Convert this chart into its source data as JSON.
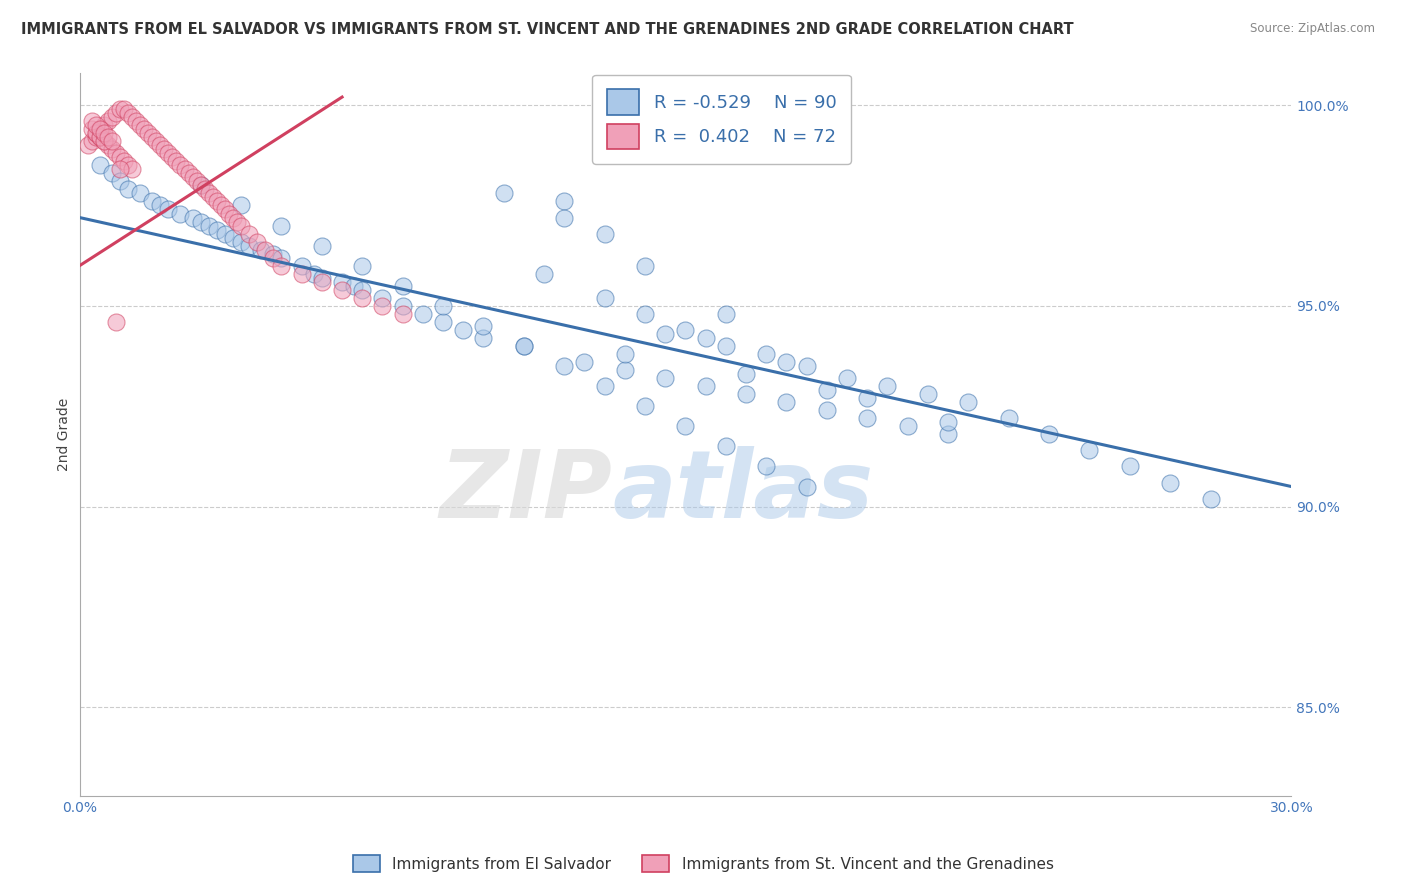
{
  "title": "IMMIGRANTS FROM EL SALVADOR VS IMMIGRANTS FROM ST. VINCENT AND THE GRENADINES 2ND GRADE CORRELATION CHART",
  "source": "Source: ZipAtlas.com",
  "ylabel": "2nd Grade",
  "legend_label_blue": "Immigrants from El Salvador",
  "legend_label_pink": "Immigrants from St. Vincent and the Grenadines",
  "R_blue": -0.529,
  "N_blue": 90,
  "R_pink": 0.402,
  "N_pink": 72,
  "xmin": 0.0,
  "xmax": 0.3,
  "ymin": 0.828,
  "ymax": 1.008,
  "yticks": [
    0.85,
    0.9,
    0.95,
    1.0
  ],
  "ytick_labels": [
    "85.0%",
    "90.0%",
    "95.0%",
    "100.0%"
  ],
  "xticks": [
    0.0,
    0.3
  ],
  "xtick_labels": [
    "0.0%",
    "30.0%"
  ],
  "color_blue": "#aac8e8",
  "color_pink": "#f0a0b8",
  "line_color_blue": "#3a6faa",
  "line_color_pink": "#d04060",
  "background_color": "#ffffff",
  "grid_color": "#cccccc",
  "watermark_zip": "ZIP",
  "watermark_atlas": "atlas",
  "blue_line_x0": 0.0,
  "blue_line_y0": 0.972,
  "blue_line_x1": 0.3,
  "blue_line_y1": 0.905,
  "pink_line_x0": 0.0,
  "pink_line_y0": 0.96,
  "pink_line_x1": 0.065,
  "pink_line_y1": 1.002,
  "blue_x": [
    0.005,
    0.008,
    0.01,
    0.012,
    0.015,
    0.018,
    0.02,
    0.022,
    0.025,
    0.028,
    0.03,
    0.032,
    0.034,
    0.036,
    0.038,
    0.04,
    0.042,
    0.045,
    0.048,
    0.05,
    0.055,
    0.058,
    0.06,
    0.065,
    0.068,
    0.07,
    0.075,
    0.08,
    0.085,
    0.09,
    0.095,
    0.1,
    0.105,
    0.11,
    0.115,
    0.12,
    0.125,
    0.13,
    0.135,
    0.14,
    0.145,
    0.15,
    0.155,
    0.16,
    0.165,
    0.17,
    0.175,
    0.18,
    0.185,
    0.19,
    0.195,
    0.2,
    0.205,
    0.21,
    0.215,
    0.22,
    0.23,
    0.24,
    0.25,
    0.26,
    0.27,
    0.28,
    0.03,
    0.04,
    0.05,
    0.06,
    0.07,
    0.08,
    0.09,
    0.1,
    0.11,
    0.12,
    0.13,
    0.14,
    0.15,
    0.16,
    0.17,
    0.18,
    0.14,
    0.16,
    0.12,
    0.13,
    0.175,
    0.155,
    0.135,
    0.145,
    0.165,
    0.185,
    0.195,
    0.215
  ],
  "blue_y": [
    0.985,
    0.983,
    0.981,
    0.979,
    0.978,
    0.976,
    0.975,
    0.974,
    0.973,
    0.972,
    0.971,
    0.97,
    0.969,
    0.968,
    0.967,
    0.966,
    0.965,
    0.964,
    0.963,
    0.962,
    0.96,
    0.958,
    0.957,
    0.956,
    0.955,
    0.954,
    0.952,
    0.95,
    0.948,
    0.946,
    0.944,
    0.942,
    0.978,
    0.94,
    0.958,
    0.976,
    0.936,
    0.952,
    0.934,
    0.948,
    0.932,
    0.944,
    0.93,
    0.94,
    0.928,
    0.938,
    0.926,
    0.935,
    0.924,
    0.932,
    0.922,
    0.93,
    0.92,
    0.928,
    0.918,
    0.926,
    0.922,
    0.918,
    0.914,
    0.91,
    0.906,
    0.902,
    0.98,
    0.975,
    0.97,
    0.965,
    0.96,
    0.955,
    0.95,
    0.945,
    0.94,
    0.935,
    0.93,
    0.925,
    0.92,
    0.915,
    0.91,
    0.905,
    0.96,
    0.948,
    0.972,
    0.968,
    0.936,
    0.942,
    0.938,
    0.943,
    0.933,
    0.929,
    0.927,
    0.921
  ],
  "pink_x": [
    0.002,
    0.003,
    0.004,
    0.005,
    0.006,
    0.007,
    0.008,
    0.009,
    0.01,
    0.011,
    0.012,
    0.013,
    0.014,
    0.015,
    0.016,
    0.017,
    0.018,
    0.019,
    0.02,
    0.021,
    0.022,
    0.023,
    0.024,
    0.025,
    0.026,
    0.027,
    0.028,
    0.029,
    0.03,
    0.031,
    0.032,
    0.033,
    0.034,
    0.035,
    0.036,
    0.037,
    0.038,
    0.039,
    0.04,
    0.042,
    0.044,
    0.046,
    0.048,
    0.05,
    0.055,
    0.06,
    0.065,
    0.07,
    0.075,
    0.08,
    0.004,
    0.005,
    0.006,
    0.007,
    0.008,
    0.009,
    0.01,
    0.011,
    0.012,
    0.013,
    0.003,
    0.004,
    0.005,
    0.006,
    0.003,
    0.004,
    0.005,
    0.006,
    0.007,
    0.008,
    0.009,
    0.01
  ],
  "pink_y": [
    0.99,
    0.991,
    0.992,
    0.994,
    0.995,
    0.996,
    0.997,
    0.998,
    0.999,
    0.999,
    0.998,
    0.997,
    0.996,
    0.995,
    0.994,
    0.993,
    0.992,
    0.991,
    0.99,
    0.989,
    0.988,
    0.987,
    0.986,
    0.985,
    0.984,
    0.983,
    0.982,
    0.981,
    0.98,
    0.979,
    0.978,
    0.977,
    0.976,
    0.975,
    0.974,
    0.973,
    0.972,
    0.971,
    0.97,
    0.968,
    0.966,
    0.964,
    0.962,
    0.96,
    0.958,
    0.956,
    0.954,
    0.952,
    0.95,
    0.948,
    0.993,
    0.992,
    0.991,
    0.99,
    0.989,
    0.988,
    0.987,
    0.986,
    0.985,
    0.984,
    0.994,
    0.993,
    0.992,
    0.991,
    0.996,
    0.995,
    0.994,
    0.993,
    0.992,
    0.991,
    0.946,
    0.984
  ]
}
